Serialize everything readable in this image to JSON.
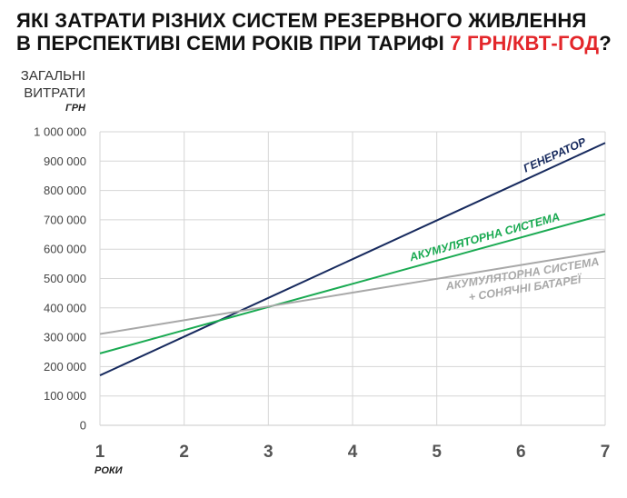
{
  "title": {
    "line1": "ЯКІ ЗАТРАТИ РІЗНИХ СИСТЕМ РЕЗЕРВНОГО ЖИВЛЕННЯ",
    "line2_prefix": "В ПЕРСПЕКТИВІ СЕМИ РОКІВ ПРИ ТАРИФІ ",
    "line2_accent": "7 ГРН/КВТ-ГОД",
    "line2_suffix": "?"
  },
  "axis": {
    "ylabel_line1": "ЗАГАЛЬНІ",
    "ylabel_line2": "ВИТРАТИ",
    "yunit": "ГРН",
    "xunit": "РОКИ"
  },
  "colors": {
    "accent": "#e3262a",
    "grid": "#d6d6d6",
    "axis": "#c8c8c8"
  },
  "chart_data": {
    "type": "line",
    "xlabel": "РОКИ",
    "ylabel": "ЗАГАЛЬНІ ВИТРАТИ, ГРН",
    "x": [
      1,
      2,
      3,
      4,
      5,
      6,
      7
    ],
    "xlim": [
      1,
      7
    ],
    "ylim": [
      0,
      1000000
    ],
    "y_ticks": [
      0,
      100000,
      200000,
      300000,
      400000,
      500000,
      600000,
      700000,
      800000,
      900000,
      1000000
    ],
    "y_tick_labels": [
      "0",
      "100 000",
      "200 000",
      "300 000",
      "400 000",
      "500 000",
      "600 000",
      "700 000",
      "800 000",
      "900 000",
      "1 000 000"
    ],
    "x_tick_labels": [
      "1",
      "2",
      "3",
      "4",
      "5",
      "6",
      "7"
    ],
    "grid": true,
    "series": [
      {
        "name": "ГЕНЕРАТОР",
        "label_lines": [
          "ГЕНЕРАТОР"
        ],
        "color": "#172a5e",
        "label_anchor_x": 6.45,
        "values": [
          170000,
          302000,
          434000,
          566000,
          698000,
          830000,
          962000
        ]
      },
      {
        "name": "АКУМУЛЯТОРНА СИСТЕМА",
        "label_lines": [
          "АКУМУЛЯТОРНА СИСТЕМА"
        ],
        "color": "#1aaa52",
        "label_anchor_x": 5.6,
        "values": [
          245000,
          324000,
          403000,
          482000,
          561000,
          640000,
          719000
        ]
      },
      {
        "name": "АКУМУЛЯТОРНА СИСТЕМА + СОНЯЧНІ БАТАРЕЇ",
        "label_lines": [
          "АКУМУЛЯТОРНА СИСТЕМА",
          "+ СОНЯЧНІ БАТАРЕЇ"
        ],
        "color": "#a8a8a8",
        "label_anchor_x": 6.0,
        "values": [
          311000,
          358000,
          405000,
          452000,
          499000,
          546000,
          593000
        ]
      }
    ]
  }
}
